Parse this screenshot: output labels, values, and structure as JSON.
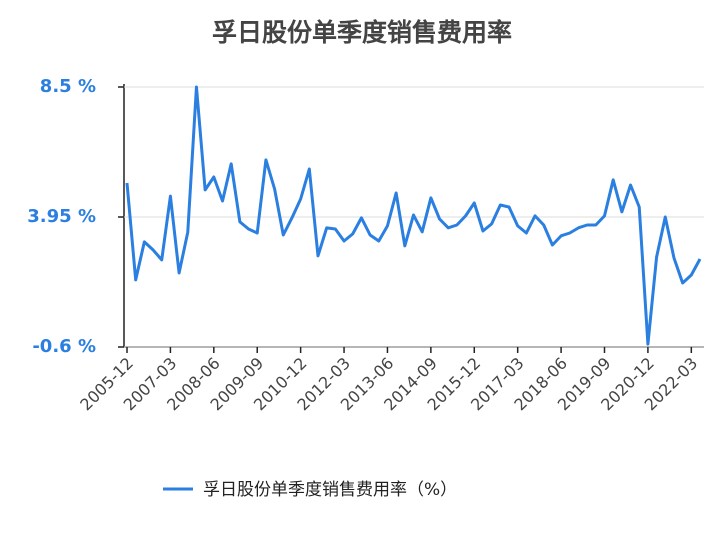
{
  "chart_data": {
    "type": "line",
    "title": "孚日股份单季度销售费用率",
    "categories": [
      "2005-12",
      null,
      null,
      null,
      null,
      "2007-03",
      null,
      null,
      null,
      null,
      "2008-06",
      null,
      null,
      null,
      null,
      "2009-09",
      null,
      null,
      null,
      null,
      "2010-12",
      null,
      null,
      null,
      null,
      "2012-03",
      null,
      null,
      null,
      null,
      "2013-06",
      null,
      null,
      null,
      null,
      "2014-09",
      null,
      null,
      null,
      null,
      "2015-12",
      null,
      null,
      null,
      null,
      "2017-03",
      null,
      null,
      null,
      null,
      "2018-06",
      null,
      null,
      null,
      null,
      "2019-09",
      null,
      null,
      null,
      null,
      "2020-12",
      null,
      null,
      null,
      null,
      "2022-03",
      null
    ],
    "series": [
      {
        "name": "孚日股份单季度销售费用率（%）",
        "color": "#2a7fe0",
        "values": [
          5.14,
          1.75,
          3.08,
          2.8,
          2.45,
          4.68,
          1.99,
          3.42,
          8.5,
          4.9,
          5.35,
          4.51,
          5.81,
          3.78,
          3.53,
          3.39,
          5.95,
          4.93,
          3.32,
          3.92,
          4.58,
          5.63,
          2.59,
          3.57,
          3.53,
          3.11,
          3.36,
          3.92,
          3.32,
          3.11,
          3.64,
          4.79,
          2.94,
          4.02,
          3.43,
          4.62,
          3.88,
          3.57,
          3.67,
          3.99,
          4.44,
          3.46,
          3.71,
          4.37,
          4.3,
          3.64,
          3.39,
          3.99,
          3.67,
          2.97,
          3.29,
          3.39,
          3.57,
          3.67,
          3.67,
          3.99,
          5.25,
          4.13,
          5.07,
          4.3,
          -0.5,
          2.55,
          3.95,
          2.52,
          1.64,
          1.92,
          2.48
        ]
      }
    ],
    "ylim": [
      -0.6,
      8.5
    ],
    "yticks": [
      {
        "value": -0.6,
        "label": "-0.6 %"
      },
      {
        "value": 3.95,
        "label": "3.95 %"
      },
      {
        "value": 8.5,
        "label": "8.5 %"
      }
    ],
    "grid": true
  }
}
